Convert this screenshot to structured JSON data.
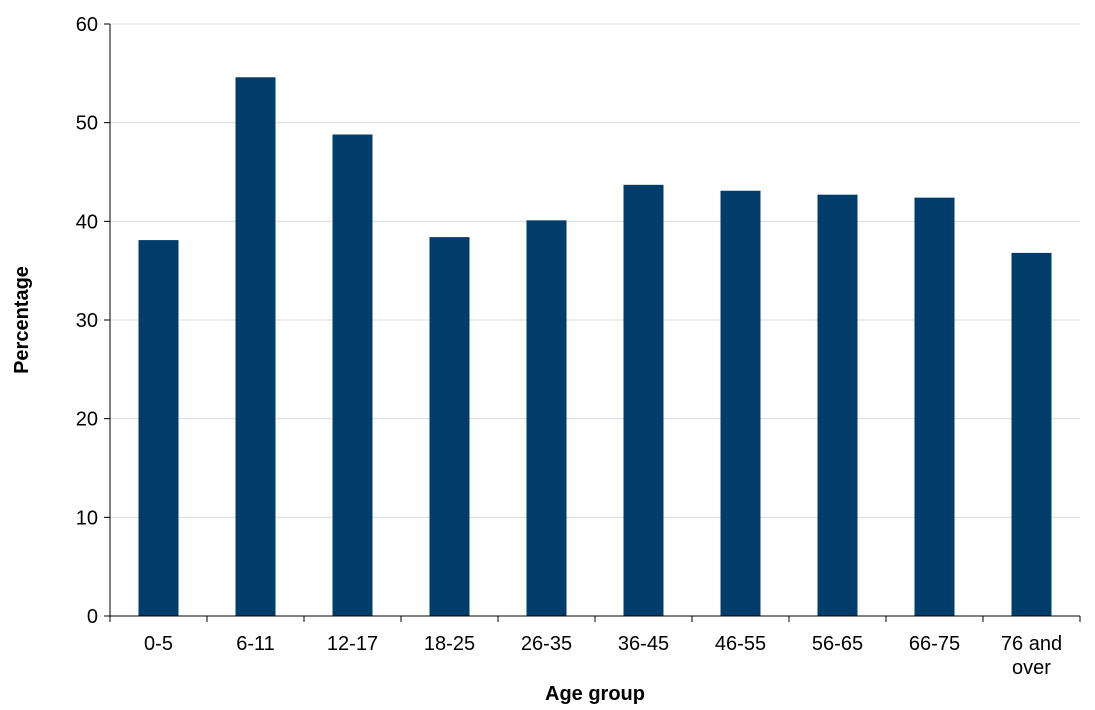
{
  "chart_data": {
    "type": "bar",
    "categories": [
      "0-5",
      "6-11",
      "12-17",
      "18-25",
      "26-35",
      "36-45",
      "46-55",
      "56-65",
      "66-75",
      "76 and over"
    ],
    "category_lines": [
      [
        "0-5"
      ],
      [
        "6-11"
      ],
      [
        "12-17"
      ],
      [
        "18-25"
      ],
      [
        "26-35"
      ],
      [
        "36-45"
      ],
      [
        "46-55"
      ],
      [
        "56-65"
      ],
      [
        "66-75"
      ],
      [
        "76 and",
        "over"
      ]
    ],
    "values": [
      38.1,
      54.6,
      48.8,
      38.4,
      40.1,
      43.7,
      43.1,
      42.7,
      42.4,
      36.8
    ],
    "title": "",
    "xlabel": "Age group",
    "ylabel": "Percentage",
    "ylim": [
      0,
      60
    ],
    "yticks": [
      0,
      10,
      20,
      30,
      40,
      50,
      60
    ],
    "grid": true,
    "bar_color": "#003d6b"
  }
}
